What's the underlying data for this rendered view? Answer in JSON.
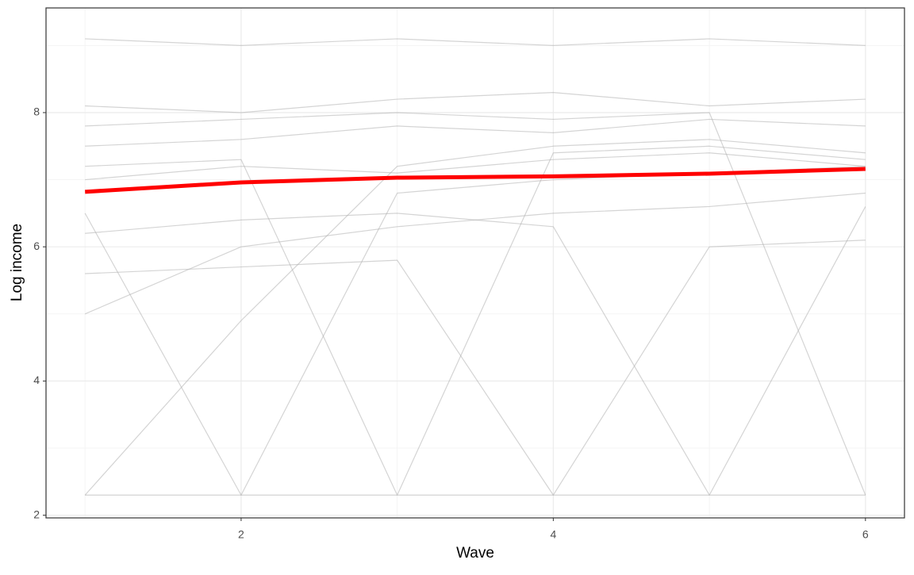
{
  "chart_data": {
    "type": "line",
    "x_label": "Wave",
    "y_label": "Log income",
    "x": [
      1,
      2,
      3,
      4,
      5,
      6
    ],
    "xlim": [
      0.75,
      6.25
    ],
    "ylim": [
      1.96,
      9.56
    ],
    "xticks": [
      2,
      4,
      6
    ],
    "yticks": [
      2,
      4,
      6,
      8
    ],
    "xminorticks": [
      1,
      3,
      5
    ],
    "yminorticks": [
      3,
      5,
      7,
      9
    ],
    "grid": true,
    "series": [
      {
        "color": "#b0b0b0",
        "values": [
          2.3,
          2.3,
          2.3,
          2.3,
          2.3,
          2.3
        ]
      },
      {
        "color": "#b0b0b0",
        "values": [
          7.5,
          7.6,
          7.8,
          7.7,
          7.9,
          7.8
        ]
      },
      {
        "color": "#b0b0b0",
        "values": [
          8.1,
          8.0,
          8.2,
          8.3,
          8.1,
          8.2
        ]
      },
      {
        "color": "#b0b0b0",
        "values": [
          7.0,
          7.2,
          7.1,
          7.3,
          7.4,
          7.2
        ]
      },
      {
        "color": "#b0b0b0",
        "values": [
          2.3,
          4.9,
          7.2,
          7.5,
          7.6,
          7.4
        ]
      },
      {
        "color": "#b0b0b0",
        "values": [
          6.5,
          2.3,
          6.8,
          7.0,
          7.1,
          7.2
        ]
      },
      {
        "color": "#b0b0b0",
        "values": [
          7.2,
          7.3,
          2.3,
          7.4,
          7.5,
          7.3
        ]
      },
      {
        "color": "#b0b0b0",
        "values": [
          5.6,
          5.7,
          5.8,
          2.3,
          6.0,
          6.1
        ]
      },
      {
        "color": "#b0b0b0",
        "values": [
          9.1,
          9.0,
          9.1,
          9.0,
          9.1,
          9.0
        ]
      },
      {
        "color": "#b0b0b0",
        "values": [
          6.2,
          6.4,
          6.5,
          6.3,
          2.3,
          6.6
        ]
      },
      {
        "color": "#b0b0b0",
        "values": [
          7.8,
          7.9,
          8.0,
          7.9,
          8.0,
          2.3
        ]
      },
      {
        "color": "#b0b0b0",
        "values": [
          5.0,
          6.0,
          6.3,
          6.5,
          6.6,
          6.8
        ]
      },
      {
        "color": "#ff0000",
        "values": [
          6.82,
          6.96,
          7.03,
          7.05,
          7.09,
          7.16
        ]
      }
    ]
  }
}
